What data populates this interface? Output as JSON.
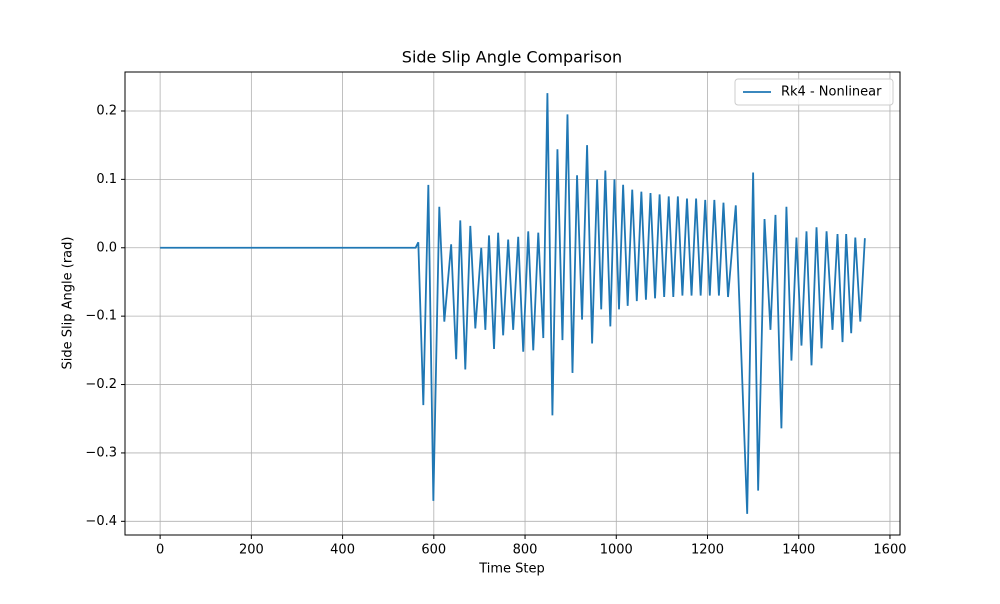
{
  "chart_data": {
    "type": "line",
    "title": "Side Slip Angle Comparison",
    "xlabel": "Time Step",
    "ylabel": "Side Slip Angle (rad)",
    "xlim": [
      -77,
      1622
    ],
    "ylim": [
      -0.42,
      0.257
    ],
    "xticks": [
      0,
      200,
      400,
      600,
      800,
      1000,
      1200,
      1400,
      1600
    ],
    "yticks": [
      {
        "value": -0.4,
        "label": "−0.4"
      },
      {
        "value": -0.3,
        "label": "−0.3"
      },
      {
        "value": -0.2,
        "label": "−0.2"
      },
      {
        "value": -0.1,
        "label": "−0.1"
      },
      {
        "value": 0,
        "label": "0.0"
      },
      0.1,
      0.2
    ],
    "grid": true,
    "legend": "upper right",
    "x": [
      0,
      560,
      566,
      577,
      588,
      599,
      612,
      623,
      638,
      649,
      658,
      669,
      680,
      691,
      704,
      713,
      721,
      732,
      741,
      752,
      763,
      774,
      785,
      796,
      807,
      818,
      829,
      840,
      849,
      860,
      871,
      882,
      893,
      904,
      914,
      925,
      936,
      947,
      958,
      967,
      976,
      987,
      996,
      1006,
      1015,
      1025,
      1035,
      1045,
      1055,
      1065,
      1075,
      1085,
      1095,
      1105,
      1115,
      1125,
      1135,
      1145,
      1155,
      1165,
      1175,
      1185,
      1195,
      1205,
      1215,
      1225,
      1235,
      1245,
      1262,
      1287,
      1300,
      1311,
      1325,
      1338,
      1349,
      1362,
      1373,
      1384,
      1395,
      1406,
      1417,
      1428,
      1439,
      1450,
      1461,
      1474,
      1485,
      1496,
      1504,
      1515,
      1524,
      1535,
      1545
    ],
    "series": [
      {
        "name": "Rk4 - Nonlinear",
        "color": "#1f77b4",
        "values": [
          0,
          0,
          0.008,
          -0.23,
          0.092,
          -0.37,
          0.06,
          -0.108,
          0.005,
          -0.163,
          0.04,
          -0.178,
          0.032,
          -0.118,
          0,
          -0.12,
          0.018,
          -0.148,
          0.022,
          -0.128,
          0.012,
          -0.12,
          0.016,
          -0.152,
          0.024,
          -0.15,
          0.022,
          -0.132,
          0.226,
          -0.245,
          0.144,
          -0.135,
          0.195,
          -0.183,
          0.106,
          -0.105,
          0.15,
          -0.14,
          0.1,
          -0.09,
          0.113,
          -0.115,
          0.1,
          -0.09,
          0.092,
          -0.085,
          0.085,
          -0.078,
          0.082,
          -0.076,
          0.08,
          -0.074,
          0.078,
          -0.072,
          0.075,
          -0.072,
          0.075,
          -0.07,
          0.072,
          -0.07,
          0.072,
          -0.07,
          0.07,
          -0.07,
          0.07,
          -0.07,
          0.066,
          -0.072,
          0.062,
          -0.389,
          0.11,
          -0.355,
          0.042,
          -0.12,
          0.048,
          -0.264,
          0.06,
          -0.165,
          0.015,
          -0.143,
          0.024,
          -0.172,
          0.03,
          -0.147,
          0.024,
          -0.12,
          0.02,
          -0.138,
          0.02,
          -0.125,
          0.015,
          -0.108,
          0.014
        ]
      }
    ]
  }
}
